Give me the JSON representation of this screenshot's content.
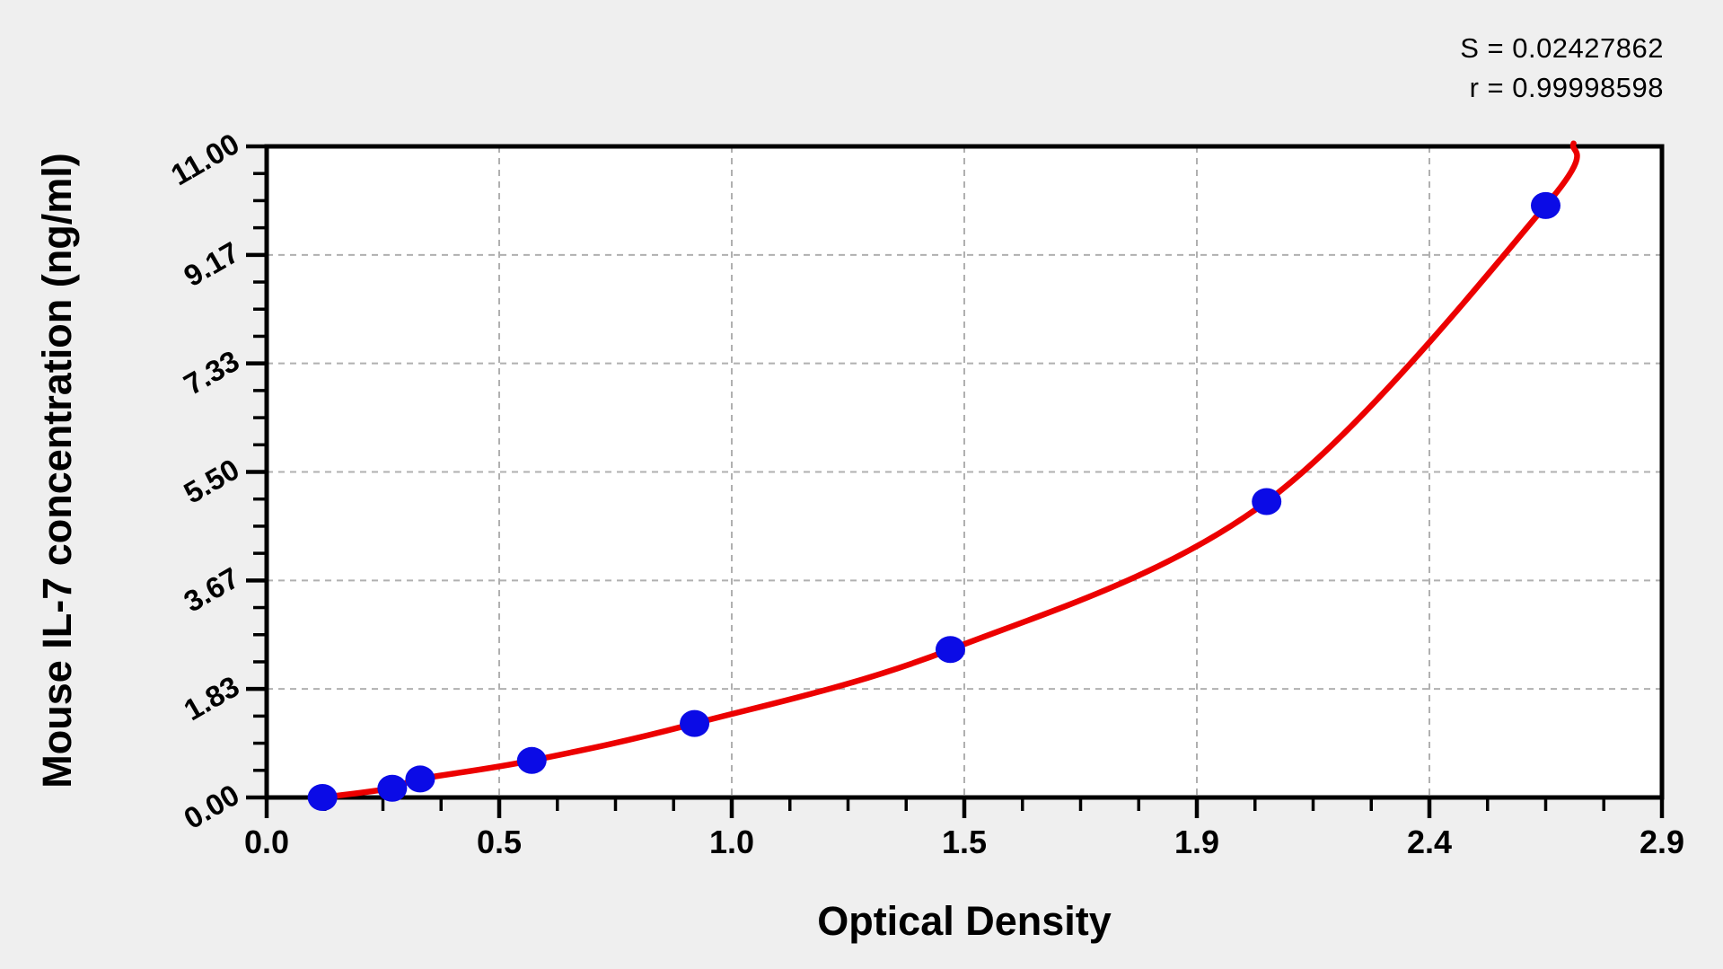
{
  "stats": {
    "s_text": "S = 0.02427862",
    "r_text": "r = 0.99998598"
  },
  "chart_data": {
    "type": "scatter",
    "title": "",
    "xlabel": "Optical Density",
    "ylabel": "Mouse IL-7 concentration (ng/ml)",
    "x_tick_labels": [
      "0.0",
      "0.5",
      "1.0",
      "1.5",
      "1.9",
      "2.4",
      "2.9"
    ],
    "y_tick_labels": [
      "0.00",
      "1.83",
      "3.67",
      "5.50",
      "7.33",
      "9.17",
      "11.00"
    ],
    "xlim": [
      0,
      2.9
    ],
    "ylim": [
      0,
      11
    ],
    "x_minor_divisions": 4,
    "y_minor_divisions": 4,
    "grid": "dashed-major",
    "legend": "none",
    "annotations": [
      "S = 0.02427862",
      "r = 0.99998598"
    ],
    "series": [
      {
        "name": "standard-points",
        "marker": "circle",
        "points": [
          {
            "od": 0.12,
            "conc": 0
          },
          {
            "od": 0.27,
            "conc": 0.156
          },
          {
            "od": 0.33,
            "conc": 0.312
          },
          {
            "od": 0.57,
            "conc": 0.625
          },
          {
            "od": 0.92,
            "conc": 1.25
          },
          {
            "od": 1.47,
            "conc": 2.5
          },
          {
            "od": 2.15,
            "conc": 5
          },
          {
            "od": 2.75,
            "conc": 10
          }
        ]
      }
    ],
    "fit_curve": {
      "name": "regression-curve",
      "end": {
        "od": 2.81,
        "conc": 11.05
      }
    }
  },
  "colors": {
    "point_blue": "#0b0be6",
    "curve_red": "#ec0000",
    "grid_gray": "#b0b0b0",
    "axis_black": "#000000",
    "plot_bg": "#ffffff",
    "page_bg": "#efefef"
  }
}
